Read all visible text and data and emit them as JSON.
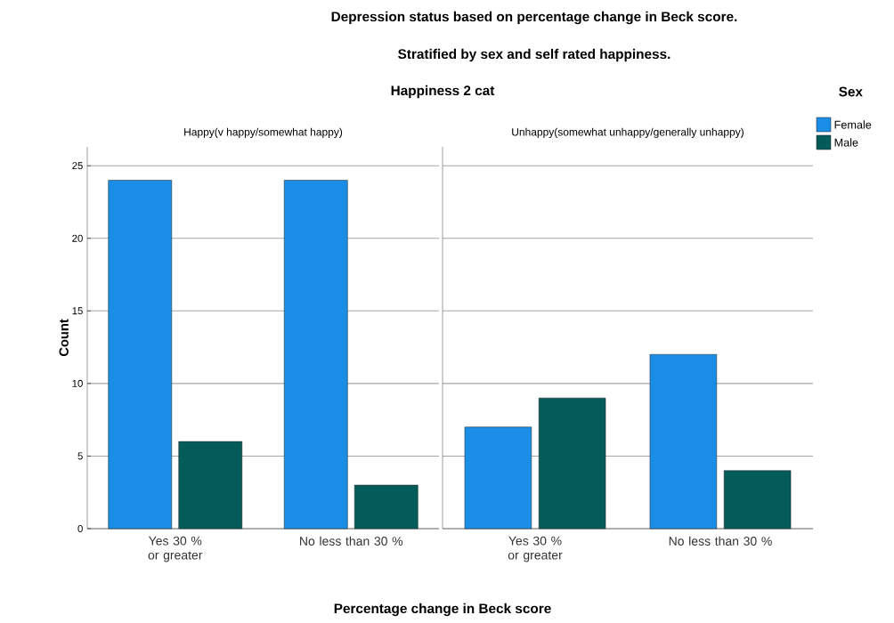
{
  "chart_data": [
    {
      "type": "bar",
      "title": "Happy(v happy/somewhat happy)",
      "annotations": [
        "Depression status based on percentage change in Beck score.",
        "Stratified by sex and self rated happiness.",
        "Happiness 2 cat"
      ],
      "xlabel": "Percentage change in Beck score",
      "ylabel": "Count",
      "categories": [
        "Yes 30 % or greater",
        "No less than 30 %"
      ],
      "series": [
        {
          "color": "#1a8ee6",
          "values": [
            24,
            24
          ]
        },
        {
          "color": "#045c5a",
          "values": [
            6,
            3
          ]
        }
      ],
      "ylim": [
        0,
        26.3
      ],
      "yticks": [
        0,
        5,
        10,
        15,
        20,
        25
      ],
      "grid": "y"
    },
    {
      "type": "bar",
      "title": "Unhappy(somewhat unhappy/generally unhappy)",
      "categories": [
        "Yes 30 % or greater",
        "No less than 30 %"
      ],
      "series": [
        {
          "name": "Female",
          "color": "#1a8ee6",
          "values": [
            7,
            12
          ]
        },
        {
          "name": "Male",
          "color": "#045c5a",
          "values": [
            9,
            4
          ]
        }
      ],
      "ylim": [
        0,
        26.3
      ],
      "yticks": [
        0,
        5,
        10,
        15,
        20,
        25
      ],
      "grid": "y",
      "tick_labels": "x",
      "legend": "right",
      "legend_title": "Sex"
    }
  ]
}
